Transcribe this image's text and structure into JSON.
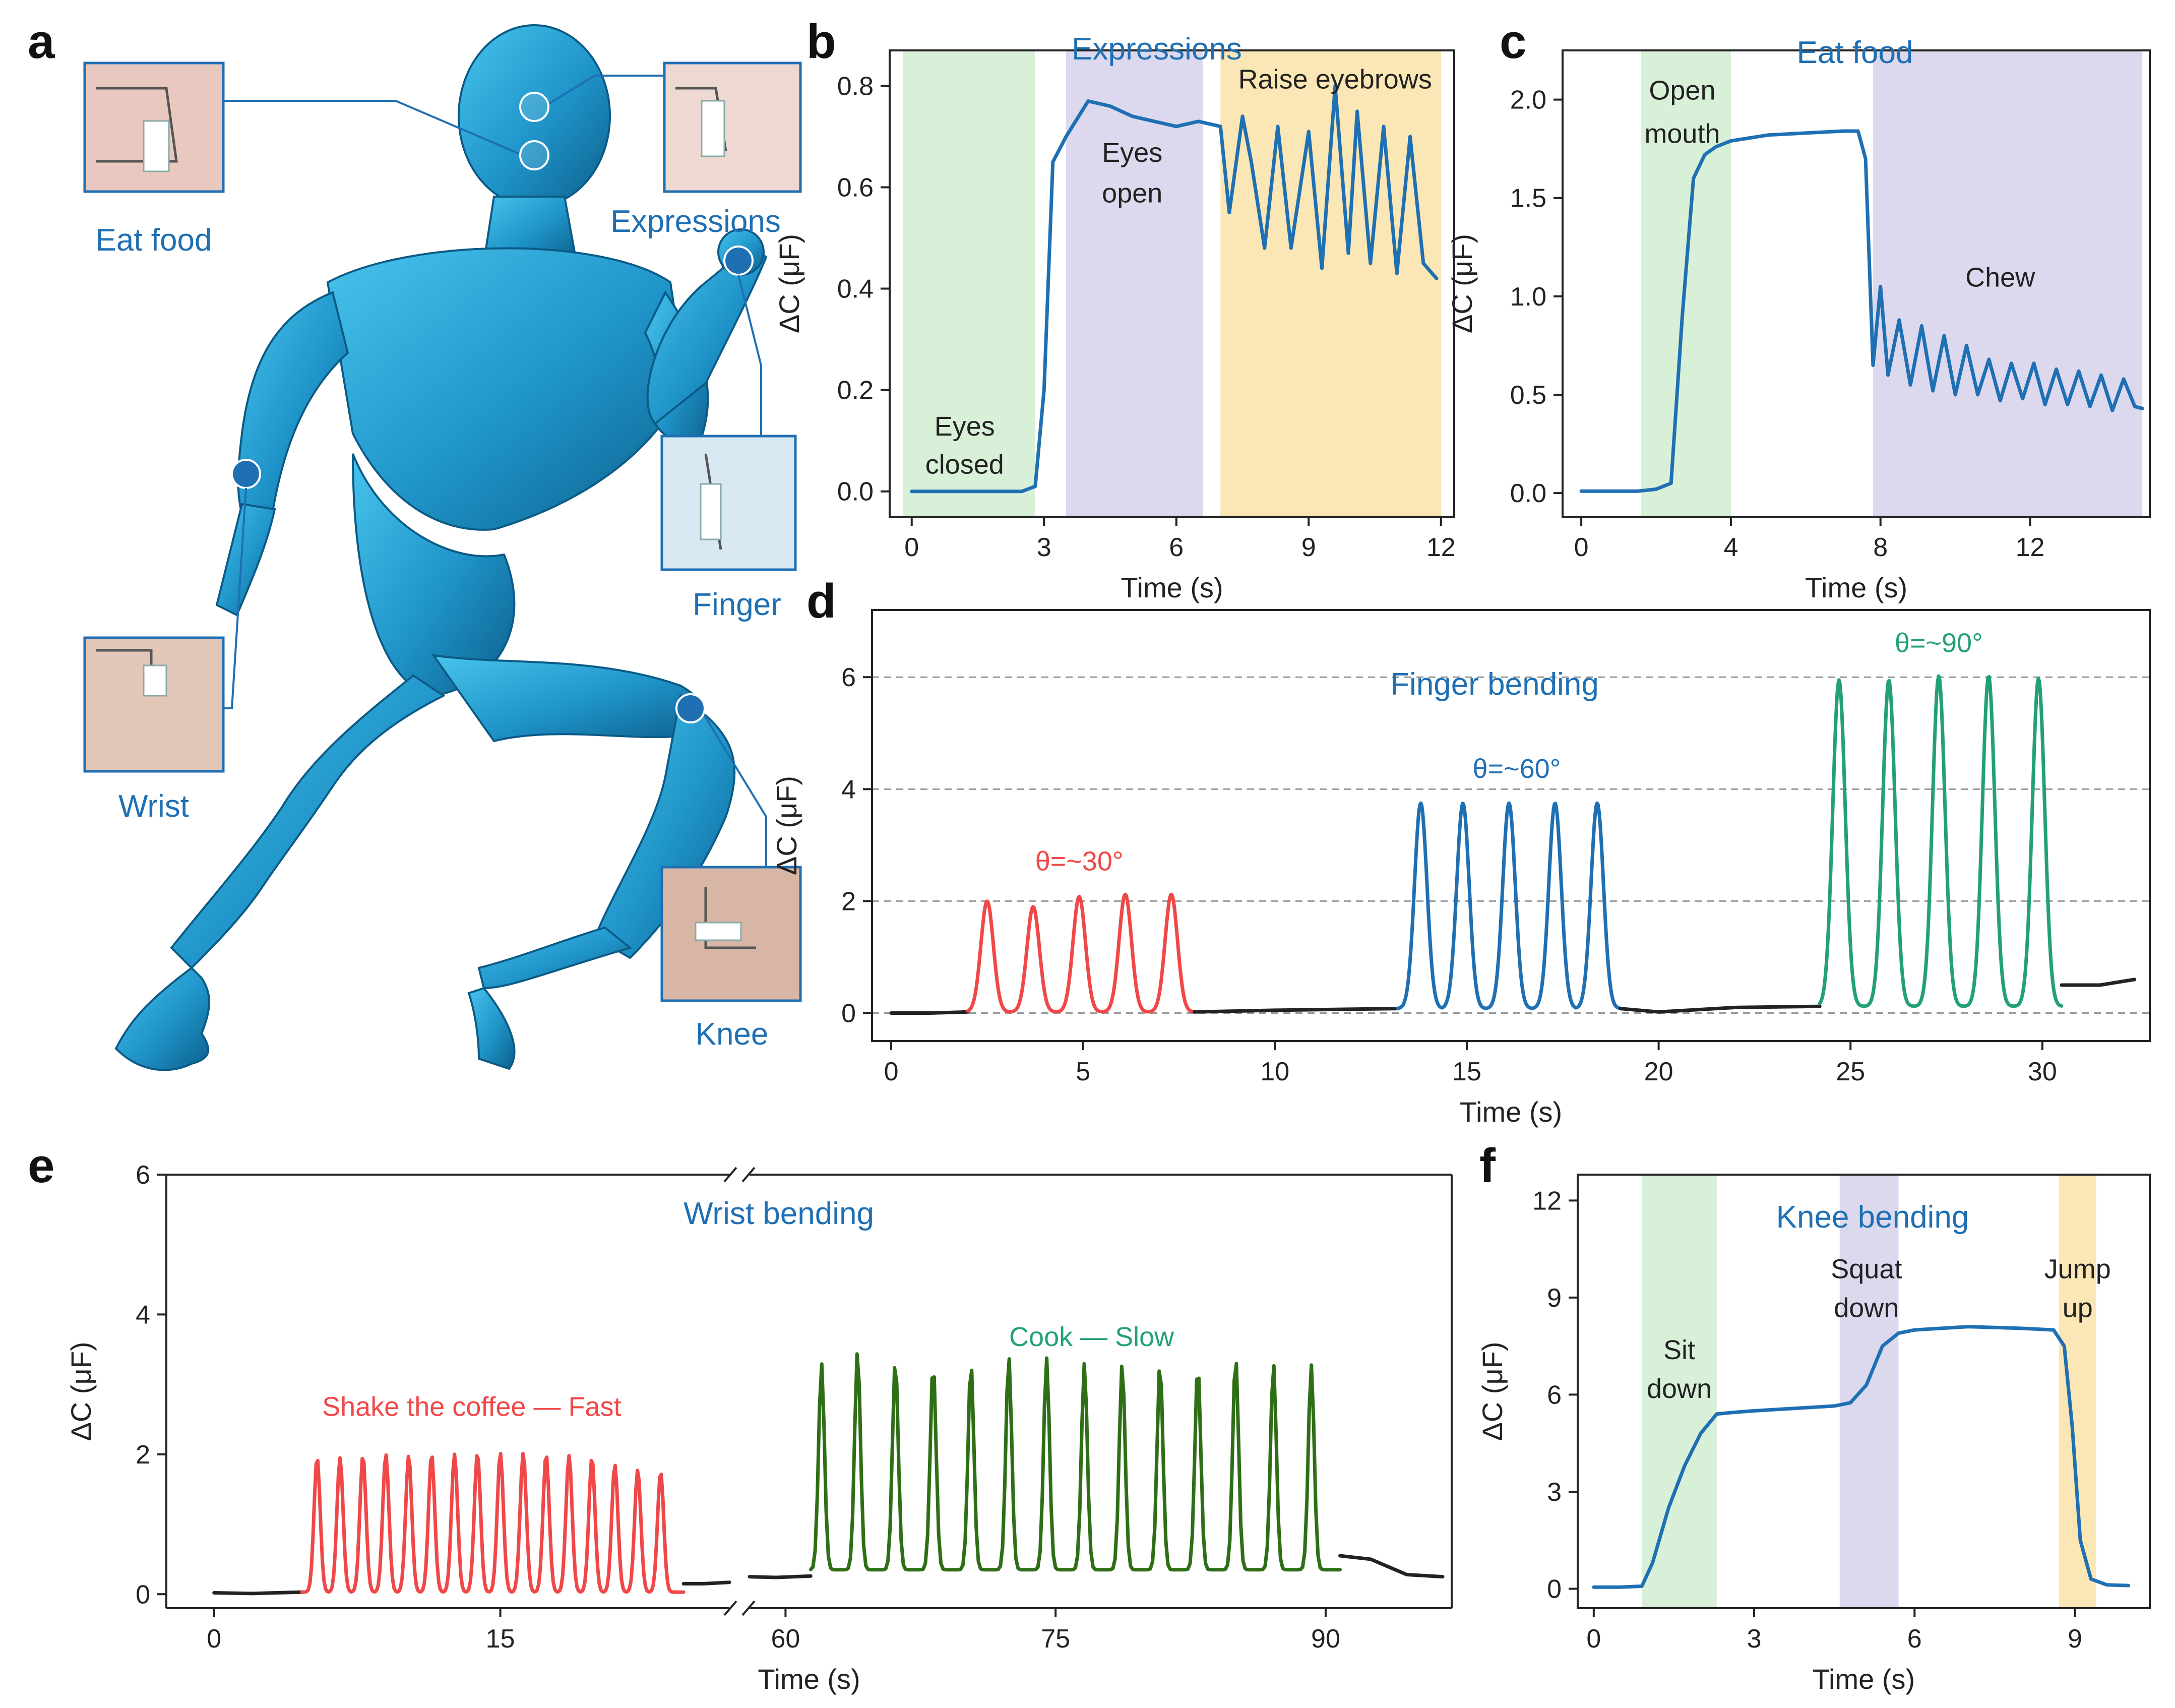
{
  "panel_labels": {
    "a": "a",
    "b": "b",
    "c": "c",
    "d": "d",
    "e": "e",
    "f": "f"
  },
  "illustration": {
    "captions": {
      "eat_food": "Eat food",
      "expressions": "Expressions",
      "finger": "Finger",
      "wrist": "Wrist",
      "knee": "Knee"
    },
    "colors": {
      "body": "#2ba6d6",
      "body_dark": "#0d5f8c",
      "link": "#1f6fb3"
    },
    "icons": [
      "running-figure-icon",
      "sensor-photo-icon"
    ]
  },
  "chart_data": [
    {
      "id": "b",
      "type": "line",
      "title": "Expressions",
      "xlabel": "Time (s)",
      "ylabel": "ΔC (μF)",
      "xlim": [
        -0.5,
        12.3
      ],
      "ylim": [
        -0.05,
        0.87
      ],
      "xticks": [
        0,
        3,
        6,
        9,
        12
      ],
      "yticks": [
        0.0,
        0.2,
        0.4,
        0.6,
        0.8
      ],
      "ytick_labels": [
        "0.0",
        "0.2",
        "0.4",
        "0.6",
        "0.8"
      ],
      "regions": [
        {
          "x0": -0.2,
          "x1": 2.8,
          "color": "#d8f0d8",
          "label": "Eyes closed",
          "at": [
            1.2,
            0.11,
            0.035
          ]
        },
        {
          "x0": 3.5,
          "x1": 6.6,
          "color": "#dcd9ee",
          "label": "Eyes open",
          "at": [
            5.0,
            0.65,
            0.57
          ]
        },
        {
          "x0": 7.0,
          "x1": 12.0,
          "color": "#fbe7b5",
          "label": "Raise eyebrows",
          "at": [
            9.6,
            0.795
          ]
        }
      ],
      "series": [
        {
          "color": "#1f6fb3",
          "x": [
            0,
            0.5,
            1,
            1.5,
            2,
            2.5,
            2.8,
            3.0,
            3.2,
            3.5,
            4,
            4.5,
            5,
            5.5,
            6,
            6.5,
            7,
            7.2,
            7.5,
            7.7,
            8,
            8.3,
            8.6,
            9.0,
            9.3,
            9.6,
            9.9,
            10.1,
            10.4,
            10.7,
            11.0,
            11.3,
            11.6,
            11.9
          ],
          "y": [
            0.0,
            0.0,
            0.0,
            0.0,
            0.0,
            0.0,
            0.01,
            0.2,
            0.65,
            0.7,
            0.77,
            0.76,
            0.74,
            0.73,
            0.72,
            0.73,
            0.72,
            0.55,
            0.74,
            0.65,
            0.48,
            0.72,
            0.48,
            0.71,
            0.44,
            0.8,
            0.47,
            0.75,
            0.45,
            0.72,
            0.43,
            0.7,
            0.45,
            0.42
          ]
        }
      ]
    },
    {
      "id": "c",
      "type": "line",
      "title": "Eat food",
      "xlabel": "Time (s)",
      "ylabel": "ΔC (μF)",
      "xlim": [
        -0.5,
        15.2
      ],
      "ylim": [
        -0.12,
        2.25
      ],
      "xticks": [
        0,
        4,
        8,
        12
      ],
      "yticks": [
        0.0,
        0.5,
        1.0,
        1.5,
        2.0
      ],
      "ytick_labels": [
        "0.0",
        "0.5",
        "1.0",
        "1.5",
        "2.0"
      ],
      "regions": [
        {
          "x0": 1.6,
          "x1": 4.0,
          "color": "#d8f0d8",
          "label": "Open mouth",
          "at": [
            2.7,
            2.0,
            1.78
          ]
        },
        {
          "x0": 7.8,
          "x1": 15.0,
          "color": "#dcd9ee",
          "label": "Chew",
          "at": [
            11.2,
            1.05
          ]
        }
      ],
      "series": [
        {
          "color": "#1f6fb3",
          "x": [
            0,
            1,
            1.5,
            2,
            2.4,
            2.7,
            3.0,
            3.3,
            3.6,
            4,
            5,
            6,
            7,
            7.4,
            7.6,
            7.8,
            8.0,
            8.2,
            8.5,
            8.8,
            9.1,
            9.4,
            9.7,
            10.0,
            10.3,
            10.6,
            10.9,
            11.2,
            11.5,
            11.8,
            12.1,
            12.4,
            12.7,
            13.0,
            13.3,
            13.6,
            13.9,
            14.2,
            14.5,
            14.8,
            15.0
          ],
          "y": [
            0.01,
            0.01,
            0.01,
            0.02,
            0.05,
            0.9,
            1.6,
            1.72,
            1.76,
            1.79,
            1.82,
            1.83,
            1.84,
            1.84,
            1.7,
            0.65,
            1.05,
            0.6,
            0.88,
            0.55,
            0.85,
            0.52,
            0.8,
            0.5,
            0.75,
            0.5,
            0.68,
            0.47,
            0.66,
            0.48,
            0.66,
            0.45,
            0.63,
            0.45,
            0.62,
            0.44,
            0.6,
            0.42,
            0.58,
            0.44,
            0.43
          ]
        }
      ]
    },
    {
      "id": "d",
      "type": "line",
      "title": "Finger bending",
      "xlabel": "Time (s)",
      "ylabel": "ΔC (μF)",
      "xlim": [
        -0.5,
        32.8
      ],
      "ylim": [
        -0.5,
        7.2
      ],
      "xticks": [
        0,
        5,
        10,
        15,
        20,
        25,
        30
      ],
      "yticks": [
        0,
        2,
        4,
        6
      ],
      "ytick_labels": [
        "0",
        "2",
        "4",
        "6"
      ],
      "gridlines_y": [
        0,
        2,
        4,
        6
      ],
      "annotations": [
        {
          "text": "θ=~30°",
          "x": 4.9,
          "y": 2.55,
          "color": "#f04848"
        },
        {
          "text": "θ=~60°",
          "x": 16.3,
          "y": 4.2,
          "color": "#1f6fb3"
        },
        {
          "text": "θ=~90°",
          "x": 27.3,
          "y": 6.45,
          "color": "#22a07a"
        }
      ],
      "series": [
        {
          "color": "#222222",
          "x": [
            0,
            1,
            2.0
          ],
          "y": [
            0.0,
            0.0,
            0.02
          ]
        },
        {
          "color": "#f04848",
          "peaks": [
            [
              2.5,
              2.0
            ],
            [
              3.7,
              1.9
            ],
            [
              4.9,
              2.08
            ],
            [
              6.1,
              2.12
            ],
            [
              7.3,
              2.12
            ]
          ],
          "x0": 2.0,
          "x1": 7.9,
          "base": 0.02
        },
        {
          "color": "#222222",
          "x": [
            7.9,
            10,
            13.2
          ],
          "y": [
            0.02,
            0.05,
            0.08
          ]
        },
        {
          "color": "#1f6fb3",
          "peaks": [
            [
              13.8,
              3.75
            ],
            [
              14.9,
              3.75
            ],
            [
              16.1,
              3.75
            ],
            [
              17.3,
              3.75
            ],
            [
              18.4,
              3.75
            ]
          ],
          "x0": 13.2,
          "x1": 19.0,
          "base": 0.08
        },
        {
          "color": "#222222",
          "x": [
            19.0,
            20,
            22,
            24.2
          ],
          "y": [
            0.08,
            0.02,
            0.1,
            0.12
          ]
        },
        {
          "color": "#22a07a",
          "peaks": [
            [
              24.7,
              5.95
            ],
            [
              26.0,
              5.95
            ],
            [
              27.3,
              6.02
            ],
            [
              28.6,
              6.02
            ],
            [
              29.9,
              5.98
            ]
          ],
          "x0": 24.2,
          "x1": 30.5,
          "base": 0.12
        },
        {
          "color": "#222222",
          "x": [
            30.5,
            31.5,
            32.4
          ],
          "y": [
            0.5,
            0.5,
            0.6
          ]
        }
      ]
    },
    {
      "id": "e",
      "type": "line",
      "title": "Wrist bending",
      "xlabel": "Time (s)",
      "ylabel": "ΔC (μF)",
      "ylim": [
        -0.2,
        6.0
      ],
      "yticks": [
        0,
        2,
        4,
        6
      ],
      "ytick_labels": [
        "0",
        "2",
        "4",
        "6"
      ],
      "segments": [
        {
          "xlim": [
            -2.5,
            27.0
          ],
          "xticks": [
            0,
            15
          ]
        },
        {
          "xlim": [
            58.0,
            97.0
          ],
          "xticks": [
            60,
            75,
            90
          ]
        }
      ],
      "annotations": [
        {
          "text": "Shake the coffee — Fast",
          "x": 13.5,
          "y": 2.55,
          "color": "#f04848"
        },
        {
          "text": "Cook — Slow",
          "x": 77.0,
          "y": 3.55,
          "color": "#22a07a"
        }
      ],
      "series": [
        {
          "color": "#222222",
          "x": [
            0,
            2,
            4.6
          ],
          "y": [
            0.02,
            0.01,
            0.03
          ]
        },
        {
          "color": "#f04848",
          "x0": 4.6,
          "x1": 24.6,
          "base": 0.03,
          "peaks": [
            [
              5.4,
              1.95
            ],
            [
              6.6,
              1.95
            ],
            [
              7.8,
              1.98
            ],
            [
              9.0,
              2.0
            ],
            [
              10.2,
              1.98
            ],
            [
              11.4,
              2.0
            ],
            [
              12.6,
              2.0
            ],
            [
              13.8,
              2.02
            ],
            [
              15.0,
              2.02
            ],
            [
              16.2,
              2.02
            ],
            [
              17.4,
              2.0
            ],
            [
              18.6,
              1.98
            ],
            [
              19.8,
              1.95
            ],
            [
              21.0,
              1.85
            ],
            [
              22.2,
              1.78
            ],
            [
              23.4,
              1.75
            ]
          ]
        },
        {
          "color": "#222222",
          "x": [
            24.6,
            25.6,
            27.0
          ],
          "y": [
            0.15,
            0.15,
            0.17
          ]
        },
        {
          "color": "#222222",
          "x": [
            58.0,
            59.5,
            61.4
          ],
          "y": [
            0.25,
            0.24,
            0.26
          ]
        },
        {
          "color": "#2e6f16",
          "x0": 61.4,
          "x1": 90.8,
          "base": 0.35,
          "peaks": [
            [
              62.0,
              3.3
            ],
            [
              64.0,
              3.48
            ],
            [
              66.1,
              3.35
            ],
            [
              68.2,
              3.3
            ],
            [
              70.3,
              3.3
            ],
            [
              72.4,
              3.4
            ],
            [
              74.5,
              3.38
            ],
            [
              76.6,
              3.3
            ],
            [
              78.7,
              3.3
            ],
            [
              80.8,
              3.3
            ],
            [
              82.9,
              3.28
            ],
            [
              85.0,
              3.4
            ],
            [
              87.1,
              3.3
            ],
            [
              89.2,
              3.28
            ]
          ]
        },
        {
          "color": "#222222",
          "x": [
            90.8,
            92.5,
            94.5,
            96.5
          ],
          "y": [
            0.55,
            0.5,
            0.28,
            0.25
          ]
        }
      ]
    },
    {
      "id": "f",
      "type": "line",
      "title": "Knee bending",
      "xlabel": "Time (s)",
      "ylabel": "ΔC (μF)",
      "xlim": [
        -0.3,
        10.4
      ],
      "ylim": [
        -0.6,
        12.8
      ],
      "xticks": [
        0,
        3,
        6,
        9
      ],
      "yticks": [
        0,
        3,
        6,
        9,
        12
      ],
      "ytick_labels": [
        "0",
        "3",
        "6",
        "9",
        "12"
      ],
      "regions": [
        {
          "x0": 0.9,
          "x1": 2.3,
          "color": "#d8f0d8",
          "label": "Sit down",
          "at": [
            1.6,
            7.1,
            5.9
          ]
        },
        {
          "x0": 4.6,
          "x1": 5.7,
          "color": "#dcd9ee",
          "label": "Squat down",
          "at": [
            5.1,
            9.6,
            8.4
          ]
        },
        {
          "x0": 8.7,
          "x1": 9.4,
          "color": "#fbe7b5",
          "label": "Jump up",
          "at": [
            9.05,
            9.6,
            8.4
          ]
        }
      ],
      "series": [
        {
          "color": "#1f6fb3",
          "x": [
            0,
            0.5,
            0.9,
            1.1,
            1.4,
            1.7,
            2.0,
            2.3,
            2.6,
            3,
            3.5,
            4,
            4.5,
            4.8,
            5.1,
            5.4,
            5.7,
            6.0,
            7,
            8,
            8.6,
            8.8,
            8.95,
            9.1,
            9.3,
            9.6,
            10.0
          ],
          "y": [
            0.05,
            0.05,
            0.08,
            0.8,
            2.5,
            3.8,
            4.8,
            5.4,
            5.45,
            5.5,
            5.55,
            5.6,
            5.65,
            5.75,
            6.3,
            7.5,
            7.9,
            8.0,
            8.1,
            8.05,
            8.0,
            7.5,
            5.0,
            1.5,
            0.3,
            0.12,
            0.1
          ]
        }
      ]
    }
  ]
}
